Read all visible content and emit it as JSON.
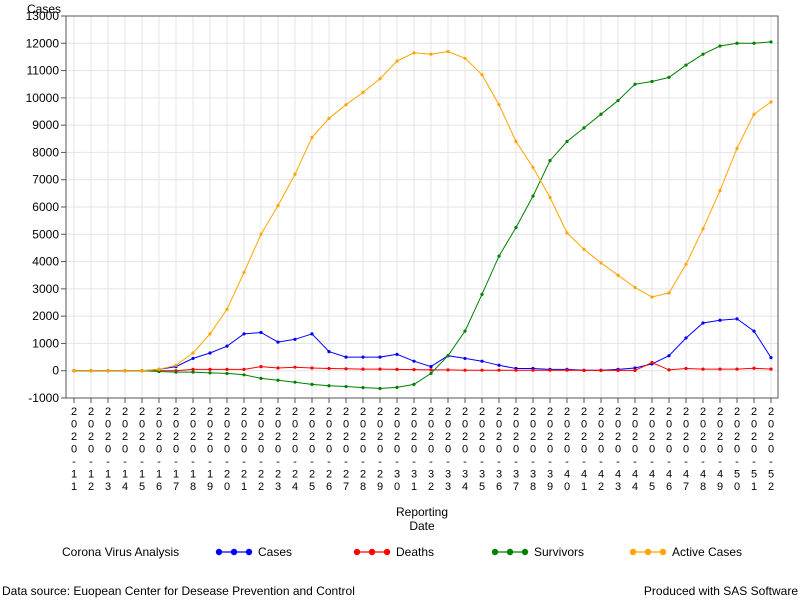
{
  "chart_data": {
    "type": "line",
    "ylabel": "Cases",
    "xlabel_lines": [
      "Reporting",
      "Date"
    ],
    "ylim": [
      -1000,
      13000
    ],
    "yticks": [
      -1000,
      0,
      1000,
      2000,
      3000,
      4000,
      5000,
      6000,
      7000,
      8000,
      9000,
      10000,
      11000,
      12000,
      13000
    ],
    "grid": true,
    "legend_placement": "bottom",
    "legend_title": "Corona Virus Analysis",
    "categories": [
      "2020-11",
      "2020-12",
      "2020-13",
      "2020-14",
      "2020-15",
      "2020-16",
      "2020-17",
      "2020-18",
      "2020-19",
      "2020-20",
      "2020-21",
      "2020-22",
      "2020-23",
      "2020-24",
      "2020-25",
      "2020-26",
      "2020-27",
      "2020-28",
      "2020-29",
      "2020-30",
      "2020-31",
      "2020-32",
      "2020-33",
      "2020-34",
      "2020-35",
      "2020-36",
      "2020-37",
      "2020-38",
      "2020-39",
      "2020-40",
      "2020-41",
      "2020-42",
      "2020-43",
      "2020-44",
      "2020-45",
      "2020-46",
      "2020-47",
      "2020-48",
      "2020-49",
      "2020-50",
      "2020-51",
      "2020-52"
    ],
    "series": [
      {
        "name": "Cases",
        "color": "#0000ff",
        "values": [
          0,
          0,
          0,
          0,
          0,
          50,
          150,
          450,
          650,
          900,
          1350,
          1400,
          1050,
          1150,
          1350,
          700,
          500,
          500,
          500,
          600,
          350,
          150,
          550,
          450,
          350,
          200,
          80,
          80,
          50,
          50,
          20,
          20,
          50,
          100,
          250,
          550,
          1200,
          1750,
          1850,
          1900,
          1450,
          480
        ]
      },
      {
        "name": "Deaths",
        "color": "#ff0000",
        "values": [
          0,
          0,
          0,
          0,
          0,
          0,
          0,
          50,
          50,
          50,
          50,
          150,
          100,
          130,
          100,
          80,
          70,
          60,
          60,
          50,
          40,
          30,
          30,
          20,
          20,
          20,
          20,
          20,
          20,
          20,
          10,
          10,
          10,
          10,
          300,
          30,
          80,
          60,
          60,
          60,
          90,
          60
        ]
      },
      {
        "name": "Survivors",
        "color": "#008000",
        "values": [
          0,
          0,
          0,
          0,
          0,
          -30,
          -50,
          -50,
          -80,
          -100,
          -150,
          -280,
          -350,
          -420,
          -500,
          -550,
          -580,
          -620,
          -650,
          -610,
          -500,
          -100,
          550,
          1450,
          2800,
          4200,
          5250,
          6400,
          7700,
          8400,
          8900,
          9400,
          9900,
          10500,
          10600,
          10750,
          11200,
          11600,
          11900,
          12000,
          12000,
          12050
        ]
      },
      {
        "name": "Active Cases",
        "color": "#ffa500",
        "values": [
          0,
          0,
          0,
          0,
          0,
          50,
          200,
          650,
          1350,
          2250,
          3600,
          5000,
          6050,
          7200,
          8550,
          9250,
          9750,
          10200,
          10700,
          11350,
          11650,
          11600,
          11700,
          11450,
          10850,
          9750,
          8400,
          7450,
          6350,
          5050,
          4450,
          3950,
          3500,
          3050,
          2700,
          2850,
          3900,
          5200,
          6600,
          8150,
          9400,
          9850
        ]
      }
    ]
  },
  "footer": {
    "source": "Data source: Euopean Center for Desease Prevention and Control",
    "produced": "Produced with SAS Software"
  }
}
